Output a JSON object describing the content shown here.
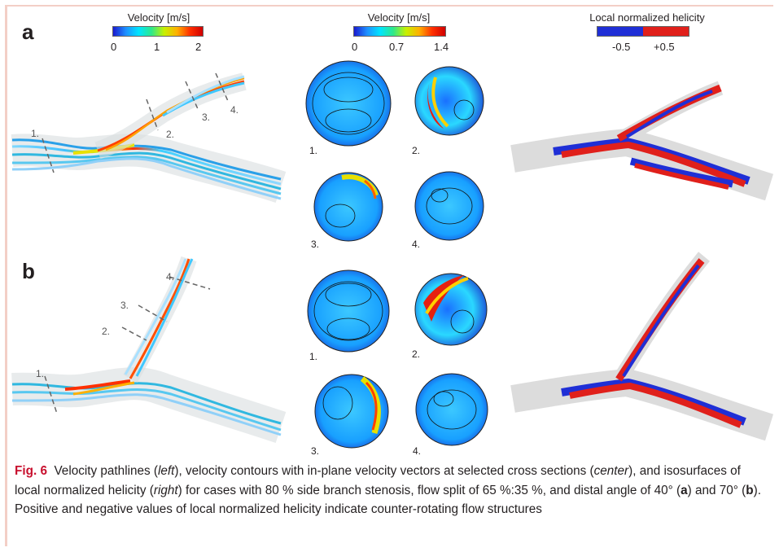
{
  "panel_a_label": "a",
  "panel_b_label": "b",
  "colorbar_left": {
    "title": "Velocity [m/s]",
    "ticks": [
      "0",
      "1",
      "2"
    ]
  },
  "colorbar_center": {
    "title": "Velocity [m/s]",
    "ticks": [
      "0",
      "0.7",
      "1.4"
    ]
  },
  "colorbar_right": {
    "title": "Local normalized helicity",
    "ticks": [
      "-0.5",
      "+0.5"
    ]
  },
  "section_labels": [
    "1.",
    "2.",
    "3.",
    "4."
  ],
  "colors": {
    "border_accent": "#f3cfc6",
    "helicity_pos": "#e0201b",
    "helicity_neg": "#1f2fd6"
  },
  "caption": {
    "fig_label": "Fig. 6",
    "t1": "Velocity pathlines (",
    "left": "left",
    "t2": "), velocity contours with in-plane velocity vectors at selected cross sections (",
    "center": "center",
    "t3": "), and isosurfaces of local normalized helicity (",
    "right": "right",
    "t4": ") for cases with 80 % side branch stenosis, flow split of 65 %:35 %, and distal angle of 40° (",
    "a": "a",
    "t5": ") and 70° (",
    "b": "b",
    "t6": "). Positive and negative values of local normalized helicity indicate counter-rotating flow structures"
  }
}
